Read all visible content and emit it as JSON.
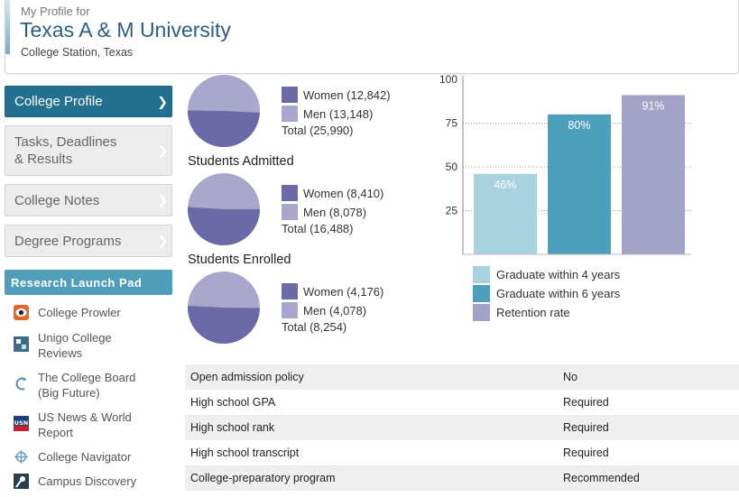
{
  "header": {
    "pre_title": "My Profile for",
    "title": "Texas A & M University",
    "location": "College Station, Texas"
  },
  "sidebar": {
    "tabs": [
      {
        "label": "College Profile",
        "active": true
      },
      {
        "label": "Tasks, Deadlines\n& Results",
        "active": false
      },
      {
        "label": "College Notes",
        "active": false
      },
      {
        "label": "Degree Programs",
        "active": false
      }
    ],
    "launch_pad_title": "Research Launch Pad",
    "resources": [
      {
        "label": "College Prowler",
        "icon": "prowler-icon"
      },
      {
        "label": "Unigo College\nReviews",
        "icon": "unigo-icon"
      },
      {
        "label": "The College Board\n(Big Future)",
        "icon": "college-board-icon"
      },
      {
        "label": "US News & World\nReport",
        "icon": "usnews-icon"
      },
      {
        "label": "College Navigator",
        "icon": "navigator-icon"
      },
      {
        "label": "Campus Discovery",
        "icon": "campus-discovery-icon"
      }
    ]
  },
  "pies": [
    {
      "title": "",
      "women_label": "Women (12,842)",
      "women": 12842,
      "men_label": "Men (13,148)",
      "men": 13148,
      "total_label": "Total (25,990)"
    },
    {
      "title": "Students Admitted",
      "women_label": "Women (8,410)",
      "women": 8410,
      "men_label": "Men (8,078)",
      "men": 8078,
      "total_label": "Total (16,488)"
    },
    {
      "title": "Students Enrolled",
      "women_label": "Women (4,176)",
      "women": 4176,
      "men_label": "Men (4,078)",
      "men": 4078,
      "total_label": "Total (8,254)"
    }
  ],
  "colors": {
    "women": "#6b6aa6",
    "men": "#a9a7cb",
    "grad4": "#a9d1e0",
    "grad6": "#4e9fbb",
    "retention": "#a3a2c7"
  },
  "chart_data": {
    "type": "bar",
    "categories": [
      "Graduate within 4 years",
      "Graduate within 6 years",
      "Retention rate"
    ],
    "values": [
      46,
      80,
      91
    ],
    "value_labels": [
      "46%",
      "80%",
      "91%"
    ],
    "y_ticks": [
      "100",
      "75",
      "50",
      "25"
    ],
    "ylim": [
      0,
      100
    ],
    "grid": true
  },
  "requirements": [
    {
      "label": "Open admission policy",
      "value": "No"
    },
    {
      "label": "High school GPA",
      "value": "Required"
    },
    {
      "label": "High school rank",
      "value": "Required"
    },
    {
      "label": "High school transcript",
      "value": "Required"
    },
    {
      "label": "College-preparatory program",
      "value": "Recommended"
    }
  ]
}
